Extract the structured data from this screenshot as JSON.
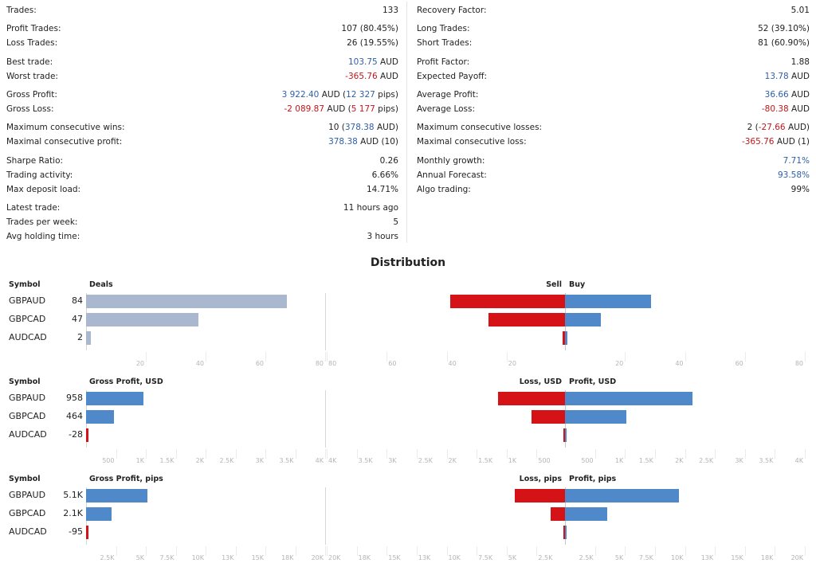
{
  "stats": {
    "left": [
      {
        "label": "Trades:",
        "parts": [
          {
            "t": "133"
          }
        ]
      },
      {
        "label": "Profit Trades:",
        "parts": [
          {
            "t": "107 (80.45%)"
          }
        ]
      },
      {
        "label": "Loss Trades:",
        "parts": [
          {
            "t": "26 (19.55%)"
          }
        ]
      },
      {
        "label": "Best trade:",
        "parts": [
          {
            "t": "103.75",
            "c": "blue"
          },
          {
            "t": " AUD"
          }
        ]
      },
      {
        "label": "Worst trade:",
        "parts": [
          {
            "t": "-365.76",
            "c": "red"
          },
          {
            "t": " AUD"
          }
        ]
      },
      {
        "label": "Gross Profit:",
        "parts": [
          {
            "t": "3 922.40",
            "c": "blue"
          },
          {
            "t": " AUD ("
          },
          {
            "t": "12 327",
            "c": "blue"
          },
          {
            "t": " pips)"
          }
        ]
      },
      {
        "label": "Gross Loss:",
        "parts": [
          {
            "t": "-2 089.87",
            "c": "red"
          },
          {
            "t": " AUD ("
          },
          {
            "t": "5 177",
            "c": "red"
          },
          {
            "t": " pips)"
          }
        ]
      },
      {
        "label": "Maximum consecutive wins:",
        "parts": [
          {
            "t": "10 ("
          },
          {
            "t": "378.38",
            "c": "blue"
          },
          {
            "t": " AUD)"
          }
        ]
      },
      {
        "label": "Maximal consecutive profit:",
        "parts": [
          {
            "t": "378.38",
            "c": "blue"
          },
          {
            "t": " AUD (10)"
          }
        ]
      },
      {
        "label": "Sharpe Ratio:",
        "parts": [
          {
            "t": "0.26"
          }
        ]
      },
      {
        "label": "Trading activity:",
        "parts": [
          {
            "t": "6.66%"
          }
        ]
      },
      {
        "label": "Max deposit load:",
        "parts": [
          {
            "t": "14.71%"
          }
        ]
      },
      {
        "label": "Latest trade:",
        "parts": [
          {
            "t": "11 hours ago"
          }
        ]
      },
      {
        "label": "Trades per week:",
        "parts": [
          {
            "t": "5"
          }
        ]
      },
      {
        "label": "Avg holding time:",
        "parts": [
          {
            "t": "3 hours"
          }
        ]
      }
    ],
    "right": [
      {
        "label": "Recovery Factor:",
        "parts": [
          {
            "t": "5.01"
          }
        ]
      },
      {
        "label": "Long Trades:",
        "parts": [
          {
            "t": "52 (39.10%)"
          }
        ]
      },
      {
        "label": "Short Trades:",
        "parts": [
          {
            "t": "81 (60.90%)"
          }
        ]
      },
      {
        "label": "Profit Factor:",
        "parts": [
          {
            "t": "1.88"
          }
        ]
      },
      {
        "label": "Expected Payoff:",
        "parts": [
          {
            "t": "13.78",
            "c": "blue"
          },
          {
            "t": " AUD"
          }
        ]
      },
      {
        "label": "Average Profit:",
        "parts": [
          {
            "t": "36.66",
            "c": "blue"
          },
          {
            "t": " AUD"
          }
        ]
      },
      {
        "label": "Average Loss:",
        "parts": [
          {
            "t": "-80.38",
            "c": "red"
          },
          {
            "t": " AUD"
          }
        ]
      },
      {
        "label": "Maximum consecutive losses:",
        "parts": [
          {
            "t": "2 ("
          },
          {
            "t": "-27.66",
            "c": "red"
          },
          {
            "t": " AUD)"
          }
        ]
      },
      {
        "label": "Maximal consecutive loss:",
        "parts": [
          {
            "t": "-365.76",
            "c": "red"
          },
          {
            "t": " AUD (1)"
          }
        ]
      },
      {
        "label": "Monthly growth:",
        "parts": [
          {
            "t": "7.71%",
            "c": "blue"
          }
        ]
      },
      {
        "label": "Annual Forecast:",
        "parts": [
          {
            "t": "93.58%",
            "c": "blue"
          }
        ]
      },
      {
        "label": "Algo trading:",
        "parts": [
          {
            "t": "99%"
          }
        ]
      }
    ]
  },
  "distribution_title": "Distribution",
  "colors": {
    "gray": "#a9b7cf",
    "blue": "#4f89c9",
    "red": "#d51216"
  },
  "chart_data": [
    {
      "type": "bar",
      "symbol_header": "Symbol",
      "left_header": "Deals",
      "loss_header": "Sell",
      "profit_header": "Buy",
      "symbols": [
        "GBPAUD",
        "GBPCAD",
        "AUDCAD"
      ],
      "left_labels": [
        "84",
        "47",
        "2"
      ],
      "left_values": [
        84,
        47,
        2
      ],
      "left_color": "gray",
      "left_max": 100,
      "left_ticks": [
        "20",
        "40",
        "60",
        "80"
      ],
      "loss_values": [
        48,
        32,
        1
      ],
      "profit_values": [
        36,
        15,
        1
      ],
      "mid_max": 100,
      "loss_ticks": [
        "80",
        "60",
        "40",
        "20"
      ],
      "profit_ticks": [
        "20",
        "40",
        "60",
        "80"
      ]
    },
    {
      "type": "bar",
      "symbol_header": "Symbol",
      "left_header": "Gross Profit, USD",
      "loss_header": "Loss, USD",
      "profit_header": "Profit, USD",
      "symbols": [
        "GBPAUD",
        "GBPCAD",
        "AUDCAD"
      ],
      "left_labels": [
        "958",
        "464",
        "-28"
      ],
      "left_values": [
        958,
        464,
        -28
      ],
      "left_color": "blue",
      "left_max": 4000,
      "left_ticks": [
        "500",
        "1K",
        "1.5K",
        "2K",
        "2.5K",
        "3K",
        "3.5K",
        "4K"
      ],
      "loss_values": [
        1120,
        560,
        25
      ],
      "profit_values": [
        2120,
        1020,
        22
      ],
      "mid_max": 4000,
      "loss_ticks": [
        "4K",
        "3.5K",
        "3K",
        "2.5K",
        "2K",
        "1.5K",
        "1K",
        "500"
      ],
      "profit_ticks": [
        "500",
        "1K",
        "1.5K",
        "2K",
        "2.5K",
        "3K",
        "3.5K",
        "4K"
      ]
    },
    {
      "type": "bar",
      "symbol_header": "Symbol",
      "left_header": "Gross Profit, pips",
      "loss_header": "Loss, pips",
      "profit_header": "Profit, pips",
      "symbols": [
        "GBPAUD",
        "GBPCAD",
        "AUDCAD"
      ],
      "left_labels": [
        "5.1K",
        "2.1K",
        "-95"
      ],
      "left_values": [
        5100,
        2100,
        -95
      ],
      "left_color": "blue",
      "left_max": 20000,
      "left_ticks": [
        "2.5K",
        "5K",
        "7.5K",
        "10K",
        "13K",
        "15K",
        "18K",
        "20K"
      ],
      "loss_values": [
        4200,
        1200,
        150
      ],
      "profit_values": [
        9500,
        3500,
        160
      ],
      "mid_max": 20000,
      "loss_ticks": [
        "20K",
        "18K",
        "15K",
        "13K",
        "10K",
        "7.5K",
        "5K",
        "2.5K"
      ],
      "profit_ticks": [
        "2.5K",
        "5K",
        "7.5K",
        "10K",
        "13K",
        "15K",
        "18K",
        "20K"
      ]
    }
  ]
}
